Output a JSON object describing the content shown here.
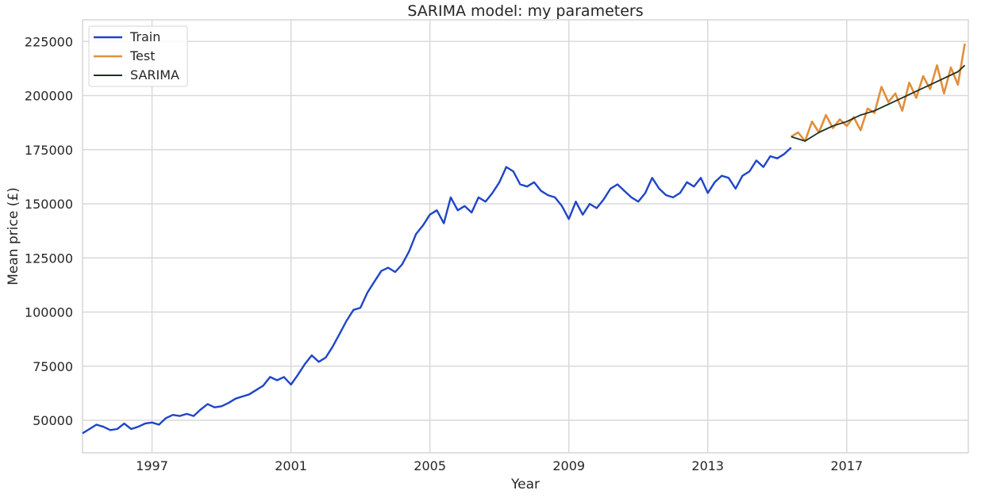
{
  "chart_data": {
    "type": "line",
    "title": "SARIMA model: my parameters",
    "xlabel": "Year",
    "ylabel": "Mean price (£)",
    "xlim": [
      1995.0,
      2020.5
    ],
    "ylim": [
      35000,
      235000
    ],
    "xticks": [
      1997,
      2001,
      2005,
      2009,
      2013,
      2017
    ],
    "xtick_labels": [
      "1997",
      "2001",
      "2005",
      "2009",
      "2013",
      "2017"
    ],
    "yticks": [
      50000,
      75000,
      100000,
      125000,
      150000,
      175000,
      200000,
      225000
    ],
    "ytick_labels": [
      "50000",
      "75000",
      "100000",
      "125000",
      "150000",
      "175000",
      "200000",
      "225000"
    ],
    "grid": true,
    "legend_position": "top-left",
    "series": [
      {
        "name": "Train",
        "color": "#1f45c8",
        "x": [
          1995.0,
          1995.2,
          1995.4,
          1995.6,
          1995.8,
          1996.0,
          1996.2,
          1996.4,
          1996.6,
          1996.8,
          1997.0,
          1997.2,
          1997.4,
          1997.6,
          1997.8,
          1998.0,
          1998.2,
          1998.4,
          1998.6,
          1998.8,
          1999.0,
          1999.2,
          1999.4,
          1999.6,
          1999.8,
          2000.0,
          2000.2,
          2000.4,
          2000.6,
          2000.8,
          2001.0,
          2001.2,
          2001.4,
          2001.6,
          2001.8,
          2002.0,
          2002.2,
          2002.4,
          2002.6,
          2002.8,
          2003.0,
          2003.2,
          2003.4,
          2003.6,
          2003.8,
          2004.0,
          2004.2,
          2004.4,
          2004.6,
          2004.8,
          2005.0,
          2005.2,
          2005.4,
          2005.6,
          2005.8,
          2006.0,
          2006.2,
          2006.4,
          2006.6,
          2006.8,
          2007.0,
          2007.2,
          2007.4,
          2007.6,
          2007.8,
          2008.0,
          2008.2,
          2008.4,
          2008.6,
          2008.8,
          2009.0,
          2009.2,
          2009.4,
          2009.6,
          2009.8,
          2010.0,
          2010.2,
          2010.4,
          2010.6,
          2010.8,
          2011.0,
          2011.2,
          2011.4,
          2011.6,
          2011.8,
          2012.0,
          2012.2,
          2012.4,
          2012.6,
          2012.8,
          2013.0,
          2013.2,
          2013.4,
          2013.6,
          2013.8,
          2014.0,
          2014.2,
          2014.4,
          2014.6,
          2014.8,
          2015.0,
          2015.2,
          2015.4
        ],
        "values": [
          44000,
          46000,
          48000,
          47000,
          45500,
          46000,
          48500,
          46000,
          47000,
          48500,
          49000,
          48000,
          51000,
          52500,
          52000,
          53000,
          52000,
          55000,
          57500,
          56000,
          56500,
          58000,
          60000,
          61000,
          62000,
          64000,
          66000,
          70000,
          68500,
          70000,
          66500,
          71000,
          76000,
          80000,
          77000,
          79000,
          84000,
          90000,
          96000,
          101000,
          102000,
          109000,
          114000,
          119000,
          120500,
          118500,
          122000,
          128000,
          136000,
          140000,
          145000,
          147000,
          141000,
          153000,
          147000,
          149000,
          146000,
          153000,
          151000,
          155000,
          160000,
          167000,
          165000,
          159000,
          158000,
          160000,
          156000,
          154000,
          153000,
          149000,
          143000,
          151000,
          145000,
          150000,
          148000,
          152000,
          157000,
          159000,
          156000,
          153000,
          151000,
          155000,
          162000,
          157000,
          154000,
          153000,
          155000,
          160000,
          158000,
          162000,
          155000,
          160000,
          163000,
          162000,
          157000,
          163000,
          165000,
          170000,
          167000,
          172000,
          171000,
          173000,
          176000
        ],
        "style": "solid"
      },
      {
        "name": "Test",
        "color": "#e18f3b",
        "x": [
          2015.4,
          2015.6,
          2015.8,
          2016.0,
          2016.2,
          2016.4,
          2016.6,
          2016.8,
          2017.0,
          2017.2,
          2017.4,
          2017.6,
          2017.8,
          2018.0,
          2018.2,
          2018.4,
          2018.6,
          2018.8,
          2019.0,
          2019.2,
          2019.4,
          2019.6,
          2019.8,
          2020.0,
          2020.2,
          2020.4
        ],
        "values": [
          181000,
          183000,
          179000,
          188000,
          183000,
          191000,
          185000,
          189000,
          186000,
          190000,
          184000,
          194000,
          192000,
          204000,
          197000,
          201000,
          193000,
          206000,
          199000,
          209000,
          203000,
          214000,
          201000,
          213000,
          205000,
          224000
        ],
        "style": "solid"
      },
      {
        "name": "SARIMA",
        "color": "#1e3323",
        "x": [
          2015.4,
          2015.8,
          2016.2,
          2016.6,
          2017.0,
          2017.4,
          2017.8,
          2018.2,
          2018.6,
          2019.0,
          2019.4,
          2019.8,
          2020.2,
          2020.4
        ],
        "values": [
          181000,
          179000,
          183000,
          186000,
          188000,
          191000,
          193000,
          196000,
          199000,
          202000,
          205000,
          208000,
          211000,
          214000
        ],
        "style": "solid"
      }
    ]
  }
}
